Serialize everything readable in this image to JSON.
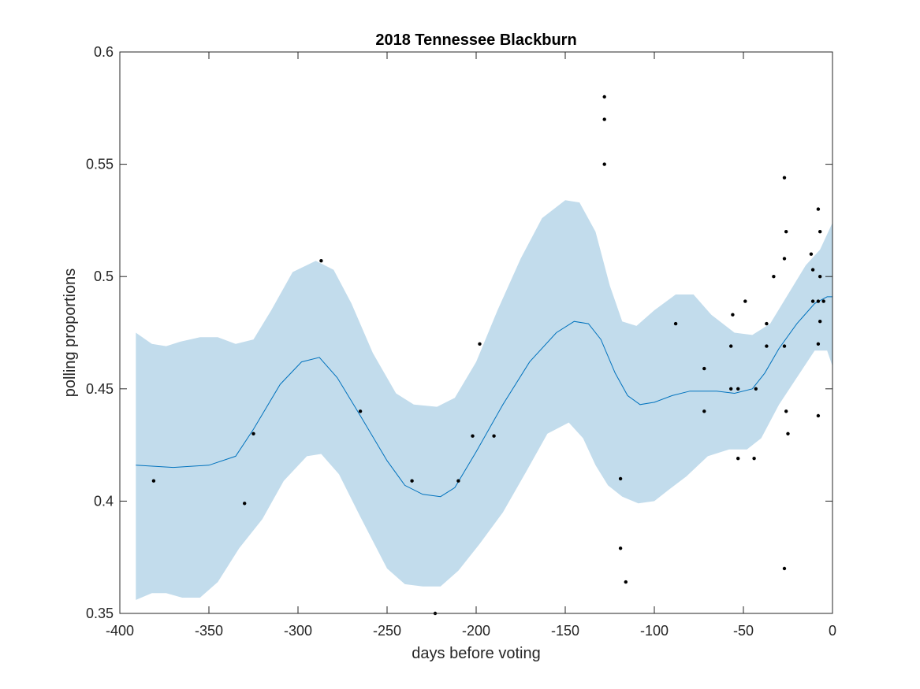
{
  "chart_data": {
    "type": "scatter",
    "title": "2018 Tennessee Blackburn",
    "xlabel": "days before voting",
    "ylabel": "polling proportions",
    "xlim": [
      -400,
      0
    ],
    "ylim": [
      0.35,
      0.6
    ],
    "xticks": [
      -400,
      -350,
      -300,
      -250,
      -200,
      -150,
      -100,
      -50,
      0
    ],
    "yticks": [
      0.35,
      0.4,
      0.45,
      0.5,
      0.55,
      0.6
    ],
    "grid": false,
    "colors": {
      "band": "#c2dcec",
      "line": "#0072bd",
      "points": "#000000",
      "axes": "#262626"
    },
    "points": [
      [
        -381,
        0.409
      ],
      [
        -330,
        0.399
      ],
      [
        -325,
        0.43
      ],
      [
        -287,
        0.507
      ],
      [
        -265,
        0.44
      ],
      [
        -236,
        0.409
      ],
      [
        -223,
        0.35
      ],
      [
        -210,
        0.409
      ],
      [
        -202,
        0.429
      ],
      [
        -198,
        0.47
      ],
      [
        -190,
        0.429
      ],
      [
        -128,
        0.58
      ],
      [
        -128,
        0.57
      ],
      [
        -128,
        0.55
      ],
      [
        -119,
        0.41
      ],
      [
        -119,
        0.379
      ],
      [
        -116,
        0.364
      ],
      [
        -88,
        0.479
      ],
      [
        -72,
        0.459
      ],
      [
        -72,
        0.44
      ],
      [
        -57,
        0.469
      ],
      [
        -57,
        0.45
      ],
      [
        -56,
        0.483
      ],
      [
        -53,
        0.419
      ],
      [
        -53,
        0.45
      ],
      [
        -49,
        0.489
      ],
      [
        -44,
        0.419
      ],
      [
        -43,
        0.45
      ],
      [
        -37,
        0.479
      ],
      [
        -37,
        0.469
      ],
      [
        -33,
        0.5
      ],
      [
        -27,
        0.544
      ],
      [
        -27,
        0.508
      ],
      [
        -27,
        0.469
      ],
      [
        -27,
        0.37
      ],
      [
        -26,
        0.52
      ],
      [
        -26,
        0.44
      ],
      [
        -25,
        0.43
      ],
      [
        -12,
        0.51
      ],
      [
        -11,
        0.503
      ],
      [
        -11,
        0.489
      ],
      [
        -8,
        0.53
      ],
      [
        -8,
        0.47
      ],
      [
        -8,
        0.438
      ],
      [
        -8,
        0.489
      ],
      [
        -7,
        0.52
      ],
      [
        -7,
        0.5
      ],
      [
        -7,
        0.48
      ],
      [
        -5,
        0.489
      ]
    ],
    "fit_line": [
      [
        -391,
        0.416
      ],
      [
        -370,
        0.415
      ],
      [
        -350,
        0.416
      ],
      [
        -335,
        0.42
      ],
      [
        -325,
        0.432
      ],
      [
        -310,
        0.452
      ],
      [
        -298,
        0.462
      ],
      [
        -288,
        0.464
      ],
      [
        -278,
        0.455
      ],
      [
        -265,
        0.438
      ],
      [
        -250,
        0.418
      ],
      [
        -240,
        0.407
      ],
      [
        -230,
        0.403
      ],
      [
        -220,
        0.402
      ],
      [
        -212,
        0.406
      ],
      [
        -200,
        0.422
      ],
      [
        -185,
        0.443
      ],
      [
        -170,
        0.462
      ],
      [
        -155,
        0.475
      ],
      [
        -145,
        0.48
      ],
      [
        -137,
        0.479
      ],
      [
        -130,
        0.472
      ],
      [
        -122,
        0.457
      ],
      [
        -115,
        0.447
      ],
      [
        -108,
        0.443
      ],
      [
        -100,
        0.444
      ],
      [
        -90,
        0.447
      ],
      [
        -80,
        0.449
      ],
      [
        -65,
        0.449
      ],
      [
        -55,
        0.448
      ],
      [
        -45,
        0.45
      ],
      [
        -38,
        0.457
      ],
      [
        -30,
        0.468
      ],
      [
        -20,
        0.479
      ],
      [
        -10,
        0.488
      ],
      [
        -3,
        0.491
      ],
      [
        0,
        0.491
      ]
    ],
    "band_upper": [
      [
        -391,
        0.475
      ],
      [
        -382,
        0.47
      ],
      [
        -374,
        0.469
      ],
      [
        -366,
        0.471
      ],
      [
        -355,
        0.473
      ],
      [
        -345,
        0.473
      ],
      [
        -335,
        0.47
      ],
      [
        -325,
        0.472
      ],
      [
        -315,
        0.485
      ],
      [
        -303,
        0.502
      ],
      [
        -290,
        0.507
      ],
      [
        -280,
        0.503
      ],
      [
        -270,
        0.488
      ],
      [
        -258,
        0.466
      ],
      [
        -245,
        0.448
      ],
      [
        -235,
        0.443
      ],
      [
        -222,
        0.442
      ],
      [
        -212,
        0.446
      ],
      [
        -200,
        0.462
      ],
      [
        -188,
        0.485
      ],
      [
        -175,
        0.508
      ],
      [
        -163,
        0.526
      ],
      [
        -150,
        0.534
      ],
      [
        -142,
        0.533
      ],
      [
        -133,
        0.52
      ],
      [
        -125,
        0.496
      ],
      [
        -118,
        0.48
      ],
      [
        -110,
        0.478
      ],
      [
        -100,
        0.485
      ],
      [
        -88,
        0.492
      ],
      [
        -78,
        0.492
      ],
      [
        -68,
        0.483
      ],
      [
        -55,
        0.475
      ],
      [
        -45,
        0.474
      ],
      [
        -35,
        0.479
      ],
      [
        -25,
        0.492
      ],
      [
        -15,
        0.505
      ],
      [
        -7,
        0.512
      ],
      [
        0,
        0.524
      ]
    ],
    "band_lower": [
      [
        -391,
        0.356
      ],
      [
        -382,
        0.359
      ],
      [
        -374,
        0.359
      ],
      [
        -365,
        0.357
      ],
      [
        -355,
        0.357
      ],
      [
        -345,
        0.364
      ],
      [
        -333,
        0.379
      ],
      [
        -320,
        0.392
      ],
      [
        -308,
        0.409
      ],
      [
        -295,
        0.42
      ],
      [
        -287,
        0.421
      ],
      [
        -277,
        0.412
      ],
      [
        -265,
        0.393
      ],
      [
        -250,
        0.37
      ],
      [
        -240,
        0.363
      ],
      [
        -230,
        0.362
      ],
      [
        -220,
        0.362
      ],
      [
        -210,
        0.369
      ],
      [
        -198,
        0.381
      ],
      [
        -185,
        0.395
      ],
      [
        -172,
        0.413
      ],
      [
        -160,
        0.43
      ],
      [
        -148,
        0.435
      ],
      [
        -140,
        0.428
      ],
      [
        -133,
        0.416
      ],
      [
        -126,
        0.407
      ],
      [
        -118,
        0.402
      ],
      [
        -109,
        0.399
      ],
      [
        -100,
        0.4
      ],
      [
        -92,
        0.405
      ],
      [
        -82,
        0.411
      ],
      [
        -70,
        0.42
      ],
      [
        -58,
        0.423
      ],
      [
        -48,
        0.423
      ],
      [
        -40,
        0.428
      ],
      [
        -30,
        0.443
      ],
      [
        -20,
        0.455
      ],
      [
        -10,
        0.467
      ],
      [
        -3,
        0.467
      ],
      [
        0,
        0.46
      ]
    ]
  }
}
